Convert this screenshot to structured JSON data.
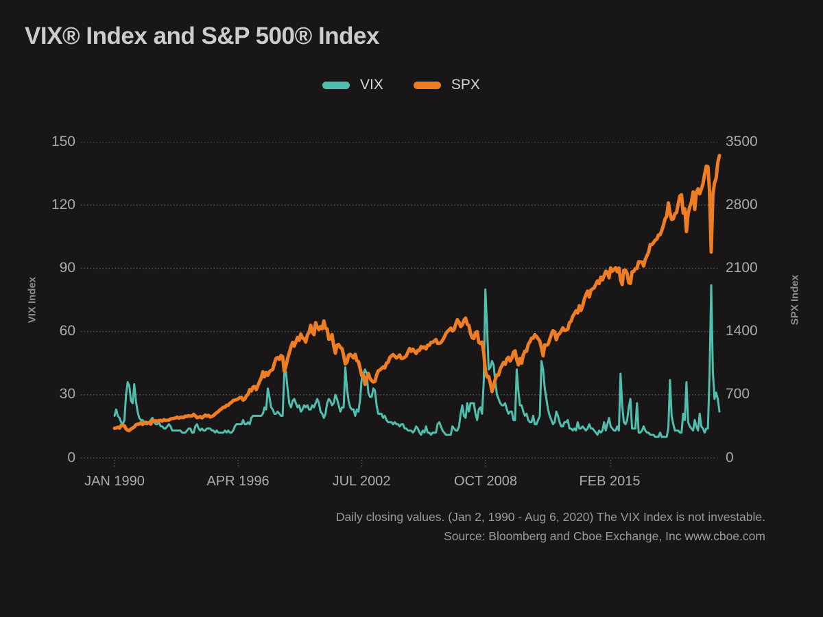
{
  "page": {
    "title": "VIX® Index and S&P 500® Index",
    "background_color": "#181616"
  },
  "legend": {
    "items": [
      {
        "label": "VIX",
        "color": "#4FBFB0"
      },
      {
        "label": "SPX",
        "color": "#EE7D23"
      }
    ]
  },
  "axes": {
    "left": {
      "title": "VIX Index",
      "ticks": [
        "150",
        "120",
        "90",
        "60",
        "30",
        "0"
      ],
      "max": 150
    },
    "right": {
      "title": "SPX Index",
      "ticks": [
        "3500",
        "2800",
        "2100",
        "1400",
        "700",
        "0"
      ],
      "max": 3500
    },
    "x": {
      "tick_labels": [
        "JAN 1990",
        "APR 1996",
        "JUL 2002",
        "OCT 2008",
        "FEB 2015"
      ]
    }
  },
  "footnote": {
    "line1": "Daily closing values. (Jan 2, 1990 - Aug 6, 2020) The VIX Index is not investable.",
    "line2": "Source: Bloomberg and Cboe Exchange, Inc www.cboe.com"
  },
  "chart_data": {
    "type": "line",
    "title": "VIX® Index and S&P 500® Index",
    "x_unit": "month",
    "x_start": "1990-01",
    "x_end": "2020-08",
    "x_tick_month_indices": [
      0,
      75,
      150,
      225,
      301
    ],
    "x_tick_labels": [
      "JAN 1990",
      "APR 1996",
      "JUL 2002",
      "OCT 2008",
      "FEB 2015"
    ],
    "grid": "horizontal-dotted",
    "grid_color": "#5B5956",
    "legend_position": "top-center",
    "left_axis": {
      "label": "VIX Index",
      "ylim": [
        0,
        150
      ],
      "tick_step": 30
    },
    "right_axis": {
      "label": "SPX Index",
      "ylim": [
        0,
        3500
      ],
      "tick_step": 700
    },
    "series": [
      {
        "name": "VIX",
        "axis": "left",
        "color": "#4FBFB0",
        "ylim": [
          0,
          150
        ],
        "values": [
          20,
          23,
          20,
          19,
          17,
          16,
          18,
          30,
          36,
          34,
          27,
          26,
          35,
          27,
          22,
          19,
          18,
          18,
          17,
          16,
          16,
          17,
          18,
          19,
          17,
          16,
          16,
          17,
          15,
          15,
          14,
          14,
          15,
          16,
          15,
          13,
          13,
          13,
          13,
          13,
          13,
          12,
          12,
          12,
          13,
          14,
          14,
          12,
          12,
          15,
          16,
          14,
          13,
          14,
          13,
          13,
          14,
          14,
          14,
          13,
          13,
          12,
          13,
          12,
          12,
          12,
          12,
          13,
          12,
          13,
          12,
          12,
          13,
          15,
          16,
          16,
          16,
          16,
          18,
          16,
          16,
          17,
          16,
          19,
          20,
          20,
          20,
          20,
          20,
          20,
          21,
          24,
          23,
          33,
          29,
          24,
          23,
          21,
          21,
          22,
          21,
          20,
          20,
          40,
          41,
          33,
          26,
          24,
          27,
          28,
          26,
          24,
          25,
          22,
          23,
          25,
          24,
          25,
          23,
          23,
          25,
          24,
          26,
          28,
          26,
          22,
          21,
          19,
          21,
          26,
          28,
          27,
          25,
          26,
          30,
          28,
          25,
          22,
          24,
          24,
          43,
          33,
          27,
          24,
          23,
          23,
          20,
          23,
          22,
          28,
          38,
          40,
          42,
          40,
          31,
          29,
          29,
          33,
          32,
          25,
          21,
          21,
          21,
          19,
          20,
          18,
          17,
          17,
          17,
          16,
          17,
          16,
          16,
          15,
          16,
          16,
          14,
          14,
          13,
          13,
          13,
          12,
          13,
          15,
          14,
          12,
          11,
          13,
          12,
          15,
          12,
          12,
          11,
          12,
          12,
          12,
          16,
          17,
          15,
          13,
          12,
          11,
          11,
          11,
          11,
          15,
          14,
          13,
          13,
          15,
          21,
          25,
          20,
          19,
          26,
          22,
          26,
          26,
          26,
          21,
          18,
          23,
          24,
          21,
          36,
          80,
          63,
          42,
          43,
          46,
          44,
          36,
          30,
          28,
          26,
          25,
          25,
          26,
          23,
          21,
          22,
          22,
          18,
          18,
          42,
          32,
          25,
          25,
          22,
          20,
          21,
          18,
          17,
          17,
          20,
          16,
          16,
          18,
          20,
          46,
          42,
          33,
          28,
          23,
          20,
          18,
          16,
          17,
          22,
          20,
          17,
          15,
          15,
          17,
          17,
          18,
          14,
          14,
          13,
          14,
          13,
          17,
          14,
          14,
          15,
          14,
          13,
          14,
          16,
          14,
          14,
          13,
          12,
          11,
          13,
          12,
          13,
          17,
          13,
          16,
          19,
          15,
          14,
          13,
          13,
          15,
          13,
          40,
          25,
          17,
          16,
          18,
          24,
          28,
          14,
          14,
          14,
          26,
          12,
          12,
          13,
          15,
          13,
          12,
          12,
          11,
          11,
          11,
          10,
          10,
          10,
          12,
          10,
          10,
          10,
          10,
          14,
          37,
          20,
          16,
          13,
          13,
          13,
          12,
          12,
          21,
          18,
          36,
          17,
          15,
          14,
          13,
          18,
          15,
          13,
          21,
          15,
          14,
          12,
          14,
          14,
          40,
          82,
          41,
          28,
          31,
          28,
          22
        ]
      },
      {
        "name": "SPX",
        "axis": "right",
        "color": "#EE7D23",
        "ylim": [
          0,
          3500
        ],
        "values": [
          329,
          332,
          340,
          331,
          361,
          358,
          356,
          323,
          306,
          304,
          322,
          330,
          344,
          367,
          375,
          375,
          390,
          371,
          388,
          395,
          388,
          392,
          375,
          417,
          409,
          413,
          404,
          415,
          415,
          408,
          424,
          414,
          418,
          419,
          431,
          436,
          439,
          443,
          452,
          440,
          450,
          451,
          448,
          464,
          459,
          468,
          462,
          466,
          482,
          467,
          446,
          451,
          457,
          444,
          458,
          475,
          463,
          472,
          454,
          459,
          470,
          487,
          501,
          515,
          533,
          545,
          562,
          562,
          584,
          582,
          605,
          616,
          636,
          640,
          646,
          654,
          669,
          671,
          640,
          652,
          687,
          705,
          757,
          741,
          786,
          791,
          757,
          801,
          848,
          885,
          954,
          899,
          947,
          915,
          955,
          970,
          980,
          1049,
          1102,
          1112,
          1091,
          1134,
          1121,
          957,
          1017,
          1099,
          1164,
          1229,
          1280,
          1238,
          1286,
          1335,
          1302,
          1373,
          1329,
          1320,
          1283,
          1363,
          1389,
          1469,
          1394,
          1366,
          1499,
          1452,
          1421,
          1455,
          1431,
          1518,
          1437,
          1429,
          1315,
          1320,
          1366,
          1240,
          1160,
          1249,
          1256,
          1224,
          1211,
          1134,
          1041,
          1060,
          1139,
          1148,
          1130,
          1107,
          1147,
          1077,
          1067,
          990,
          912,
          916,
          815,
          886,
          936,
          880,
          856,
          841,
          848,
          917,
          964,
          975,
          990,
          1008,
          996,
          1051,
          1058,
          1112,
          1131,
          1145,
          1126,
          1107,
          1121,
          1141,
          1102,
          1104,
          1114,
          1130,
          1174,
          1212,
          1181,
          1204,
          1181,
          1157,
          1192,
          1191,
          1234,
          1220,
          1229,
          1207,
          1249,
          1248,
          1280,
          1281,
          1295,
          1311,
          1270,
          1270,
          1277,
          1304,
          1336,
          1378,
          1401,
          1418,
          1438,
          1407,
          1421,
          1482,
          1531,
          1503,
          1455,
          1474,
          1527,
          1549,
          1481,
          1468,
          1379,
          1331,
          1323,
          1386,
          1400,
          1280,
          1267,
          1283,
          1166,
          969,
          896,
          903,
          826,
          735,
          798,
          873,
          919,
          919,
          987,
          1021,
          1057,
          1036,
          1096,
          1115,
          1074,
          1104,
          1169,
          1187,
          1089,
          1031,
          1102,
          1049,
          1141,
          1183,
          1181,
          1258,
          1286,
          1327,
          1326,
          1364,
          1345,
          1321,
          1292,
          1219,
          1131,
          1253,
          1247,
          1258,
          1312,
          1366,
          1408,
          1398,
          1310,
          1362,
          1379,
          1407,
          1441,
          1412,
          1416,
          1426,
          1498,
          1515,
          1569,
          1598,
          1631,
          1606,
          1686,
          1633,
          1682,
          1757,
          1806,
          1848,
          1783,
          1859,
          1872,
          1884,
          1924,
          1960,
          1931,
          2003,
          1972,
          2018,
          2068,
          2059,
          1995,
          2105,
          2068,
          2086,
          2107,
          2063,
          2104,
          1972,
          1920,
          2079,
          2080,
          2044,
          1940,
          1932,
          2060,
          2065,
          2097,
          2099,
          2174,
          2171,
          2168,
          2126,
          2199,
          2239,
          2279,
          2364,
          2363,
          2384,
          2412,
          2423,
          2470,
          2472,
          2519,
          2575,
          2648,
          2674,
          2824,
          2714,
          2641,
          2648,
          2705,
          2718,
          2816,
          2902,
          2914,
          2712,
          2760,
          2507,
          2704,
          2784,
          2834,
          2946,
          2752,
          2942,
          2980,
          2926,
          2977,
          3038,
          3141,
          3231,
          3226,
          2954,
          2280,
          2912,
          3044,
          3100,
          3271,
          3349
        ]
      }
    ]
  }
}
